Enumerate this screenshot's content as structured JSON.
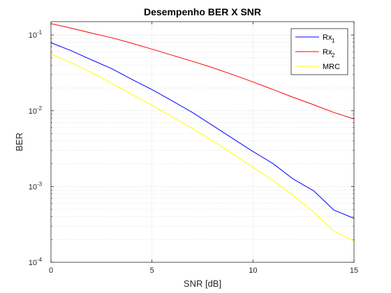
{
  "chart_data": {
    "type": "line",
    "title": "Desempenho BER X SNR",
    "xlabel": "SNR [dB]",
    "ylabel": "BER",
    "xlim": [
      0,
      15
    ],
    "ylim": [
      0.0001,
      0.15
    ],
    "yscale": "log",
    "grid": true,
    "legend_position": "top-right",
    "xticks": [
      0,
      5,
      10,
      15
    ],
    "yticks": [
      {
        "base": "10",
        "exp": "-4",
        "value": 0.0001
      },
      {
        "base": "10",
        "exp": "-3",
        "value": 0.001
      },
      {
        "base": "10",
        "exp": "-2",
        "value": 0.01
      },
      {
        "base": "10",
        "exp": "-1",
        "value": 0.1
      }
    ],
    "x": [
      0,
      1,
      2,
      3,
      4,
      5,
      6,
      7,
      8,
      9,
      10,
      11,
      12,
      13,
      14,
      15
    ],
    "series": [
      {
        "name": "Rx1",
        "label_main": "Rx",
        "label_sub": "1",
        "color": "#0000ff",
        "values": [
          0.079,
          0.062,
          0.047,
          0.036,
          0.026,
          0.019,
          0.0135,
          0.0095,
          0.0064,
          0.0043,
          0.0029,
          0.002,
          0.00125,
          0.00088,
          0.00049,
          0.00038
        ]
      },
      {
        "name": "Rx2",
        "label_main": "Rx",
        "label_sub": "2",
        "color": "#ff0000",
        "values": [
          0.141,
          0.123,
          0.106,
          0.092,
          0.078,
          0.065,
          0.054,
          0.045,
          0.037,
          0.03,
          0.024,
          0.019,
          0.015,
          0.012,
          0.0095,
          0.0078
        ]
      },
      {
        "name": "MRC",
        "label_main": "MRC",
        "label_sub": "",
        "color": "#ffff00",
        "values": [
          0.056,
          0.043,
          0.032,
          0.023,
          0.0165,
          0.0118,
          0.0083,
          0.0058,
          0.004,
          0.0027,
          0.0018,
          0.0012,
          0.00076,
          0.00046,
          0.00026,
          0.00019
        ]
      }
    ]
  }
}
